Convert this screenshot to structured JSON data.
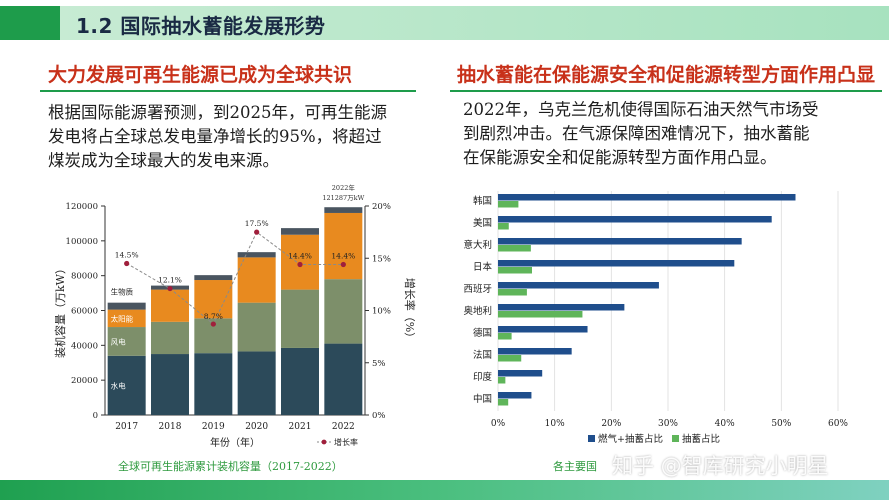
{
  "slide": {
    "title": "1.2 国际抽水蓄能发展形势",
    "left_heading": "大力发展可再生能源已成为全球共识",
    "left_paragraph": [
      "根据国际能源署预测，到2025年，可再生能源",
      "发电将占全球总发电量净增长的95%，将超过",
      "煤炭成为全球最大的发电来源。"
    ],
    "right_heading": "抽水蓄能在保能源安全和促能源转型方面作用凸显",
    "right_paragraph": [
      "2022年，乌克兰危机使得国际石油天然气市场受",
      "到剧烈冲击。在气源保障困难情况下，抽水蓄能",
      "在保能源安全和促能源转型方面作用凸显。"
    ],
    "left_caption": "全球可再生能源累计装机容量（2017-2022）",
    "right_caption": "各主要国",
    "watermark": "知乎 @智库研究小明星"
  },
  "colors": {
    "title_green": "#1e9c4b",
    "heading_red": "#c8311a",
    "hydro": "#2c4a5a",
    "wind": "#7d8f6a",
    "solar": "#e88a1f",
    "bio": "#4a5560",
    "bar_blue": "#1f4e8c",
    "bar_green": "#5fb55a"
  },
  "chart_data": [
    {
      "type": "bar",
      "stacked": true,
      "title": "全球可再生能源累计装机容量（2017-2022）",
      "xlabel": "年份（年）",
      "ylabel": "装机容量（万kW）",
      "y2label": "增长率（%）",
      "categories": [
        "2017",
        "2018",
        "2019",
        "2020",
        "2021",
        "2022"
      ],
      "ylim": [
        0,
        120000
      ],
      "yticks": [
        "0",
        "20000",
        "40000",
        "60000",
        "80000",
        "100000",
        "120000"
      ],
      "y2lim": [
        0,
        20
      ],
      "y2ticks": [
        "0%",
        "5%",
        "10%",
        "15%",
        "20%"
      ],
      "series": [
        {
          "name": "水电",
          "values": [
            34000,
            35000,
            35500,
            36500,
            38500,
            41000
          ]
        },
        {
          "name": "风电",
          "values": [
            16500,
            18500,
            20000,
            28000,
            33500,
            37000
          ]
        },
        {
          "name": "太阳能",
          "values": [
            10000,
            18500,
            22000,
            26000,
            31500,
            38000
          ]
        },
        {
          "name": "生物质",
          "values": [
            4000,
            2300,
            2800,
            3000,
            3800,
            3300
          ]
        }
      ],
      "growth_rate": {
        "name": "增长率",
        "values": [
          14.5,
          12.1,
          8.7,
          17.5,
          14.4,
          14.4
        ],
        "labels": [
          "14.5%",
          "12.1%",
          "8.7%",
          "17.5%",
          "14.4%",
          "14.4%"
        ]
      },
      "annotation": {
        "line1": "2022年",
        "line2": "121287万kW"
      },
      "legend": "bottom"
    },
    {
      "type": "bar",
      "orientation": "horizontal",
      "categories": [
        "韩国",
        "美国",
        "意大利",
        "日本",
        "西班牙",
        "奥地利",
        "德国",
        "法国",
        "印度",
        "中国"
      ],
      "series": [
        {
          "name": "燃气+抽蓄占比",
          "values": [
            52.5,
            48.3,
            43.0,
            41.7,
            28.4,
            22.3,
            15.8,
            13.0,
            7.8,
            5.9
          ]
        },
        {
          "name": "抽蓄占比",
          "values": [
            3.6,
            1.9,
            5.8,
            6.0,
            5.1,
            14.9,
            2.4,
            4.1,
            1.3,
            1.8
          ]
        }
      ],
      "xlim": [
        0,
        60
      ],
      "xticks": [
        "0%",
        "10%",
        "20%",
        "30%",
        "40%",
        "50%",
        "60%"
      ],
      "grid": true,
      "legend": "bottom"
    }
  ]
}
